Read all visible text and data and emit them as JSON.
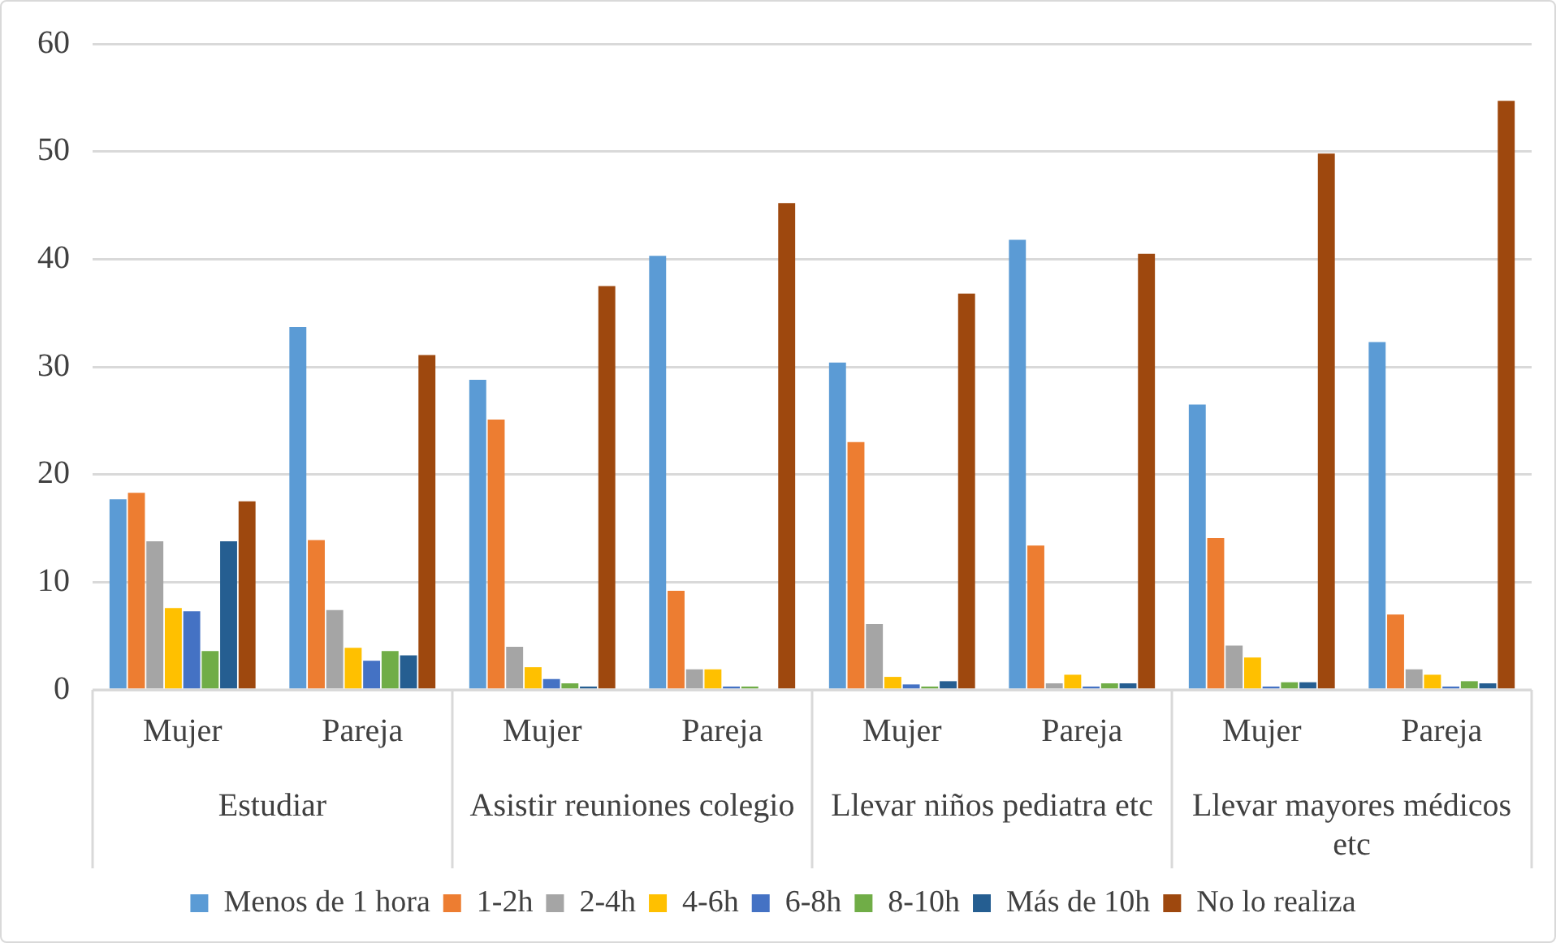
{
  "chart_data": {
    "type": "bar",
    "categories": [
      "Mujer",
      "Pareja",
      "Mujer",
      "Pareja",
      "Mujer",
      "Pareja",
      "Mujer",
      "Pareja"
    ],
    "annotations": [
      "Estudiar",
      "Asistir reuniones colegio",
      "Llevar niños pediatra etc",
      "Llevar mayores médicos etc"
    ],
    "series": [
      {
        "name": "Menos de 1 hora",
        "color": "#5b9bd5",
        "values": [
          17.7,
          33.7,
          28.8,
          40.3,
          30.4,
          41.8,
          26.5,
          32.3
        ]
      },
      {
        "name": "1-2h",
        "color": "#ed7d31",
        "values": [
          18.3,
          13.9,
          25.1,
          9.2,
          23.0,
          13.4,
          14.1,
          7.0
        ]
      },
      {
        "name": "2-4h",
        "color": "#a5a5a5",
        "values": [
          13.8,
          7.4,
          4.0,
          1.9,
          6.1,
          0.6,
          4.1,
          1.9
        ]
      },
      {
        "name": "4-6h",
        "color": "#ffc000",
        "values": [
          7.6,
          3.9,
          2.1,
          1.9,
          1.2,
          1.4,
          3.0,
          1.4
        ]
      },
      {
        "name": "6-8h",
        "color": "#4472c4",
        "values": [
          7.3,
          2.7,
          1.0,
          0.3,
          0.5,
          0.3,
          0.3,
          0.3
        ]
      },
      {
        "name": "8-10h",
        "color": "#70ad47",
        "values": [
          3.6,
          3.6,
          0.6,
          0.3,
          0.3,
          0.6,
          0.7,
          0.8
        ]
      },
      {
        "name": "Más de 10h",
        "color": "#255e91",
        "values": [
          13.8,
          3.2,
          0.3,
          0,
          0.8,
          0.6,
          0.7,
          0.6
        ]
      },
      {
        "name": "No lo realiza",
        "color": "#9e480e",
        "values": [
          17.5,
          31.1,
          37.5,
          45.2,
          36.8,
          40.5,
          49.8,
          54.7
        ]
      }
    ],
    "ylim": [
      0,
      60
    ],
    "yticks": [
      0,
      10,
      20,
      30,
      40,
      50,
      60
    ],
    "grid": "y",
    "legend": "bottom"
  }
}
